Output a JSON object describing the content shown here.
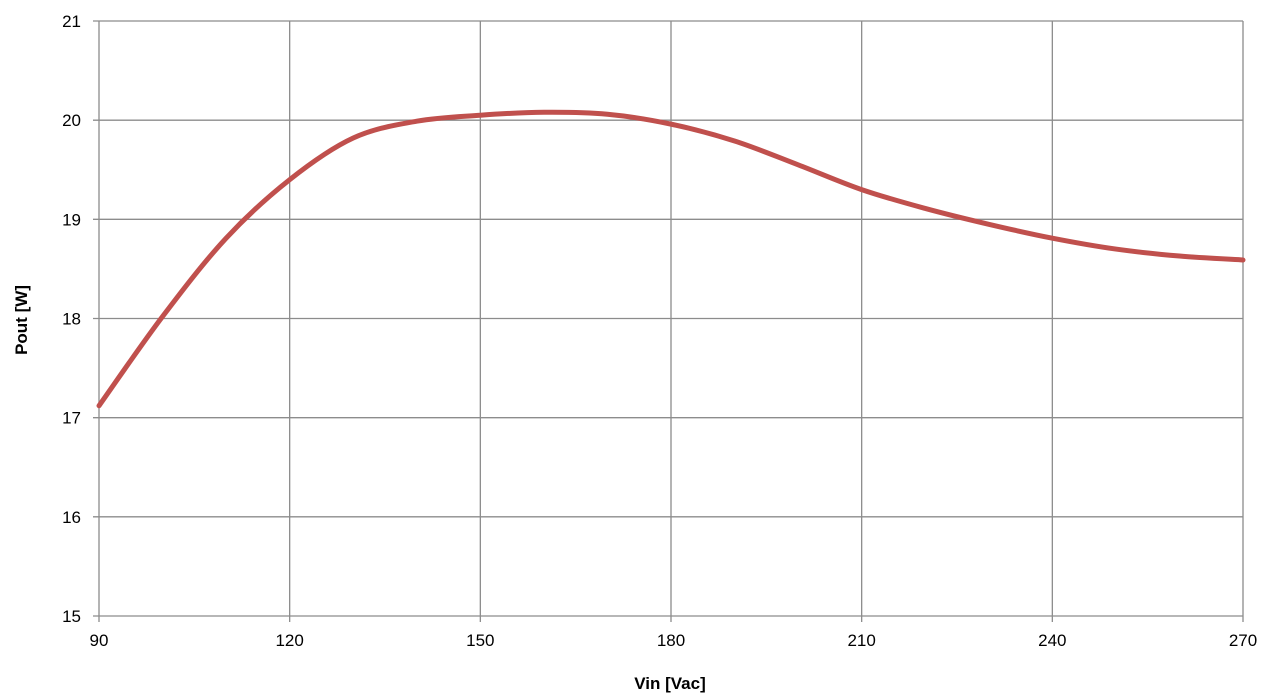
{
  "chart_data": {
    "type": "line",
    "xlabel": "Vin [Vac]",
    "ylabel": "Pout [W]",
    "xlim": [
      90,
      270
    ],
    "ylim": [
      15,
      21
    ],
    "xticks": [
      90,
      120,
      150,
      180,
      210,
      240,
      270
    ],
    "yticks": [
      15,
      16,
      17,
      18,
      19,
      20,
      21
    ],
    "grid": true,
    "series": [
      {
        "color": "#c0504d",
        "x": [
          90,
          100,
          110,
          120,
          130,
          140,
          150,
          160,
          170,
          180,
          190,
          200,
          210,
          220,
          230,
          240,
          250,
          260,
          270
        ],
        "y": [
          17.12,
          18.02,
          18.81,
          19.4,
          19.82,
          19.99,
          20.05,
          20.08,
          20.06,
          19.96,
          19.79,
          19.55,
          19.3,
          19.11,
          18.95,
          18.81,
          18.7,
          18.63,
          18.59
        ]
      }
    ]
  }
}
